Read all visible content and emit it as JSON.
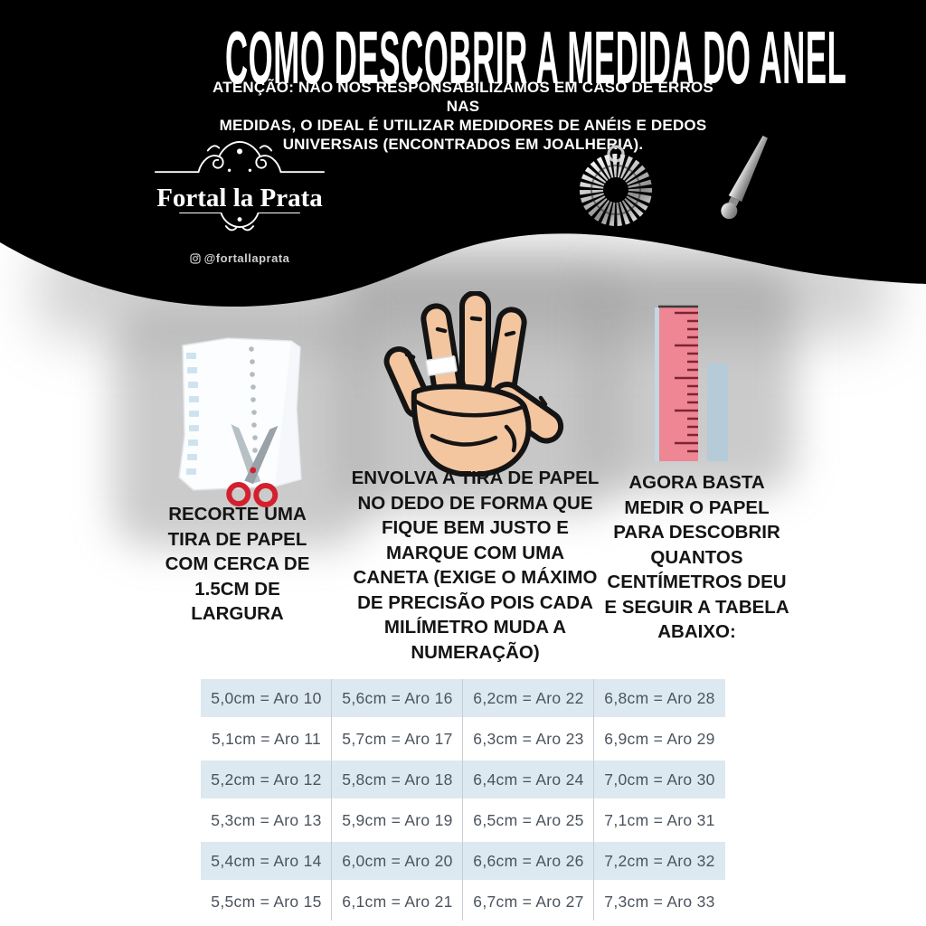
{
  "header": {
    "title": "COMO DESCOBRIR A MEDIDA DO ANEL",
    "warning_lines": [
      "ATENÇÃO: NÃO NOS RESPONSABILIZAMOS EM CASO DE ERROS NAS",
      "MEDIDAS, O IDEAL É UTILIZAR MEDIDORES DE ANÉIS E DEDOS",
      "UNIVERSAIS (ENCONTRADOS EM JOALHERIA)."
    ],
    "brand": {
      "name": "Fortal la Prata",
      "handle": "@fortallaprata",
      "flourish_icon": "ornamental-flourish",
      "handle_icon": "instagram-icon"
    },
    "photos": {
      "ring_sizer_icon": "ring-sizer-gauge",
      "mandrel_icon": "ring-mandrel"
    },
    "background_color": "#000000"
  },
  "steps": [
    {
      "illustration_icon": "paper-strip-scissors",
      "lines": [
        "RECORTE UMA",
        "TIRA DE PAPEL",
        "COM CERCA DE",
        "1.5CM DE",
        "LARGURA"
      ]
    },
    {
      "illustration_icon": "hand-with-paper-strip",
      "lines": [
        "ENVOLVA A TIRA DE PAPEL",
        "NO DEDO DE FORMA QUE",
        "FIQUE BEM JUSTO E",
        "MARQUE COM UMA",
        "CANETA (EXIGE O MÁXIMO",
        "DE PRECISÃO POIS CADA",
        "MILÍMETRO MUDA A",
        "NUMERAÇÃO)"
      ]
    },
    {
      "illustration_icon": "ruler-with-paper-strip",
      "lines": [
        "AGORA BASTA",
        "MEDIR O PAPEL",
        "PARA DESCOBRIR",
        "QUANTOS",
        "CENTÍMETROS DEU",
        "E SEGUIR A TABELA",
        "ABAIXO:"
      ]
    }
  ],
  "size_table": {
    "rows": [
      [
        "5,0cm = Aro 10",
        "5,6cm = Aro 16",
        "6,2cm = Aro 22",
        "6,8cm = Aro 28"
      ],
      [
        "5,1cm = Aro 11",
        "5,7cm = Aro 17",
        "6,3cm = Aro 23",
        "6,9cm = Aro 29"
      ],
      [
        "5,2cm = Aro 12",
        "5,8cm = Aro 18",
        "6,4cm = Aro 24",
        "7,0cm = Aro 30"
      ],
      [
        "5,3cm = Aro 13",
        "5,9cm = Aro 19",
        "6,5cm = Aro 25",
        "7,1cm = Aro 31"
      ],
      [
        "5,4cm = Aro 14",
        "6,0cm = Aro 20",
        "6,6cm = Aro 26",
        "7,2cm = Aro 32"
      ],
      [
        "5,5cm = Aro 15",
        "6,1cm = Aro 21",
        "6,7cm = Aro 27",
        "7,3cm = Aro 33"
      ]
    ],
    "row_alt_color": "#dde9f1",
    "text_color": "#4b545e"
  },
  "colors": {
    "scissors_red": "#d3202f",
    "ruler_pink": "#ee8694",
    "ruler_tick": "#7e2433",
    "paper_strip_blue": "#b5cbd8",
    "hand_skin": "#f3c6a0",
    "table_blue": "#dde9f1"
  }
}
